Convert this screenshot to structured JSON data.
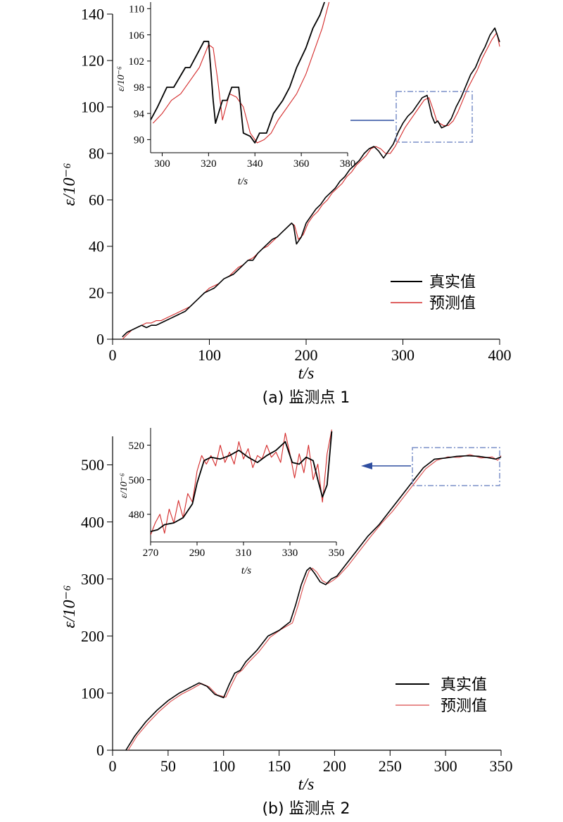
{
  "chart_data": [
    {
      "type": "line",
      "caption": "(a) 监测点 1",
      "xlabel": "t/s",
      "ylabel": "ε/10⁻⁶",
      "xlim": [
        0,
        400
      ],
      "ylim": [
        0,
        140
      ],
      "xticks": [
        0,
        100,
        200,
        300,
        400
      ],
      "yticks": [
        0,
        20,
        40,
        60,
        80,
        100,
        120,
        140
      ],
      "legend_position": "bottom-right",
      "series": [
        {
          "name": "真实值",
          "color": "#000000",
          "x": [
            10,
            15,
            20,
            25,
            30,
            35,
            40,
            45,
            50,
            55,
            60,
            65,
            70,
            75,
            80,
            85,
            90,
            95,
            100,
            105,
            110,
            115,
            120,
            125,
            130,
            135,
            140,
            145,
            150,
            155,
            160,
            165,
            170,
            175,
            180,
            185,
            187,
            190,
            195,
            200,
            205,
            210,
            215,
            220,
            225,
            230,
            235,
            240,
            245,
            250,
            255,
            260,
            265,
            270,
            275,
            280,
            285,
            290,
            295,
            300,
            305,
            310,
            315,
            320,
            325,
            330,
            333,
            336,
            340,
            345,
            350,
            355,
            360,
            365,
            370,
            375,
            380,
            385,
            390,
            395,
            400
          ],
          "values": [
            1,
            3,
            4,
            5,
            6,
            5,
            6,
            6,
            7,
            8,
            9,
            10,
            11,
            12,
            14,
            16,
            18,
            20,
            21,
            22,
            24,
            26,
            27,
            28,
            30,
            32,
            34,
            34,
            37,
            39,
            41,
            43,
            44,
            46,
            48,
            50,
            49,
            41,
            44,
            50,
            53,
            56,
            58,
            61,
            63,
            65,
            68,
            70,
            73,
            75,
            77,
            80,
            82,
            83,
            81,
            78,
            81,
            84,
            89,
            93,
            96,
            98,
            101,
            104,
            105,
            96,
            93,
            94,
            91,
            92,
            95,
            100,
            104,
            109,
            114,
            117,
            122,
            126,
            131,
            134,
            128
          ]
        },
        {
          "name": "预测值",
          "color": "#d42a2a",
          "x": [
            10,
            15,
            20,
            25,
            30,
            35,
            40,
            45,
            50,
            55,
            60,
            65,
            70,
            75,
            80,
            85,
            90,
            95,
            100,
            105,
            110,
            115,
            120,
            125,
            130,
            135,
            140,
            145,
            150,
            155,
            160,
            165,
            170,
            175,
            180,
            185,
            188,
            192,
            197,
            202,
            207,
            212,
            217,
            222,
            227,
            232,
            237,
            242,
            247,
            252,
            257,
            262,
            267,
            272,
            277,
            282,
            287,
            292,
            297,
            302,
            307,
            312,
            317,
            322,
            327,
            332,
            335,
            338,
            342,
            347,
            352,
            357,
            362,
            367,
            372,
            377,
            382,
            387,
            392,
            397,
            400
          ],
          "values": [
            0,
            2,
            4,
            5,
            6,
            7,
            7,
            8,
            8,
            9,
            10,
            11,
            12,
            13,
            14,
            16,
            18,
            20,
            22,
            23,
            24,
            26,
            27,
            29,
            31,
            32,
            34,
            35,
            37,
            39,
            40,
            42,
            44,
            46,
            48,
            50,
            49,
            43,
            45,
            50,
            53,
            55,
            58,
            60,
            63,
            65,
            67,
            70,
            72,
            75,
            77,
            79,
            82,
            83,
            82,
            80,
            80,
            83,
            87,
            91,
            94,
            97,
            100,
            103,
            104,
            98,
            94,
            93,
            92,
            92,
            94,
            98,
            103,
            108,
            112,
            116,
            121,
            125,
            129,
            132,
            126
          ]
        }
      ],
      "inset": {
        "xlabel": "t/s",
        "ylabel": "ε/10⁻⁶",
        "xlim": [
          295,
          380
        ],
        "ylim": [
          88,
          111
        ],
        "xticks": [
          300,
          320,
          340,
          360,
          380
        ],
        "yticks": [
          90,
          94,
          98,
          102,
          106,
          110
        ],
        "zoom_box": {
          "x": [
            296,
            372
          ],
          "y": [
            88,
            111
          ]
        },
        "series": [
          {
            "name": "真实值",
            "color": "#000000",
            "x": [
              295,
              298,
              302,
              305,
              310,
              312,
              315,
              318,
              320,
              322,
              323,
              326,
              328,
              330,
              333,
              335,
              338,
              340,
              342,
              345,
              348,
              352,
              355,
              358,
              362,
              365,
              368,
              370
            ],
            "values": [
              93,
              95,
              98,
              98,
              101,
              101,
              103,
              105,
              105,
              96,
              92.5,
              96,
              96,
              98,
              98,
              91,
              90.5,
              89.5,
              91,
              91,
              94,
              96,
              98,
              101,
              104,
              107,
              109,
              111
            ]
          },
          {
            "name": "预测值",
            "color": "#d42a2a",
            "x": [
              296,
              300,
              304,
              308,
              312,
              316,
              320,
              322,
              324,
              326,
              329,
              332,
              335,
              338,
              341,
              344,
              347,
              350,
              354,
              358,
              362,
              366,
              369,
              372
            ],
            "values": [
              92.5,
              94,
              96,
              97,
              99,
              101,
              104.5,
              104,
              99,
              93,
              97,
              96.5,
              95,
              91,
              89.5,
              90,
              91,
              93,
              95,
              97,
              100,
              104,
              107,
              111
            ]
          }
        ]
      }
    },
    {
      "type": "line",
      "caption": "(b) 监测点 2",
      "xlabel": "t/s",
      "ylabel": "ε/10⁻⁶",
      "xlim": [
        0,
        350
      ],
      "ylim": [
        0,
        550
      ],
      "xticks": [
        0,
        50,
        100,
        150,
        200,
        250,
        300,
        350
      ],
      "yticks": [
        0,
        100,
        200,
        300,
        400,
        500
      ],
      "legend_position": "bottom-right",
      "series": [
        {
          "name": "真实值",
          "color": "#000000",
          "x": [
            12,
            20,
            30,
            40,
            50,
            60,
            70,
            78,
            85,
            92,
            100,
            105,
            110,
            115,
            120,
            130,
            140,
            150,
            160,
            165,
            170,
            175,
            178,
            182,
            187,
            192,
            197,
            202,
            210,
            220,
            230,
            240,
            250,
            260,
            270,
            280,
            290,
            300,
            310,
            320,
            330,
            340,
            345,
            350
          ],
          "values": [
            0,
            25,
            50,
            70,
            87,
            100,
            110,
            118,
            112,
            98,
            92,
            115,
            135,
            140,
            155,
            175,
            200,
            210,
            225,
            255,
            290,
            315,
            320,
            310,
            295,
            290,
            300,
            305,
            325,
            350,
            375,
            395,
            420,
            445,
            470,
            495,
            510,
            512,
            515,
            516,
            515,
            512,
            510,
            514
          ]
        },
        {
          "name": "预测值",
          "color": "#d94a4a",
          "x": [
            14,
            22,
            32,
            42,
            52,
            62,
            72,
            80,
            87,
            94,
            102,
            107,
            112,
            117,
            122,
            132,
            142,
            152,
            162,
            167,
            172,
            177,
            180,
            184,
            189,
            194,
            199,
            204,
            212,
            222,
            232,
            242,
            252,
            262,
            272,
            282,
            292,
            302,
            312,
            322,
            332,
            342,
            347,
            350
          ],
          "values": [
            0,
            25,
            48,
            68,
            85,
            98,
            108,
            117,
            111,
            97,
            93,
            114,
            133,
            141,
            153,
            173,
            198,
            212,
            223,
            253,
            288,
            314,
            319,
            312,
            297,
            292,
            298,
            306,
            323,
            348,
            373,
            397,
            418,
            443,
            468,
            493,
            508,
            514,
            513,
            518,
            512,
            514,
            508,
            516
          ]
        }
      ],
      "inset": {
        "xlabel": "t/s",
        "ylabel": "ε/10⁻⁶",
        "xlim": [
          270,
          350
        ],
        "ylim": [
          464,
          530
        ],
        "xticks": [
          270,
          290,
          310,
          330,
          350
        ],
        "yticks": [
          480,
          500,
          520
        ],
        "zoom_box": {
          "x": [
            270,
            350
          ],
          "y": [
            464,
            530
          ]
        },
        "series": [
          {
            "name": "真实值",
            "color": "#000000",
            "x": [
              270,
              273,
              276,
              280,
              284,
              288,
              290,
              293,
              296,
              300,
              304,
              308,
              312,
              316,
              320,
              324,
              328,
              331,
              334,
              337,
              340,
              342,
              344,
              346,
              348
            ],
            "values": [
              470,
              471,
              474,
              475,
              478,
              486,
              498,
              511,
              513,
              512,
              514,
              517,
              513,
              510,
              514,
              517,
              522,
              510,
              509,
              513,
              511,
              500,
              490,
              497,
              528
            ]
          },
          {
            "name": "预测值",
            "color": "#d42a2a",
            "x": [
              270,
              272,
              274,
              276,
              278,
              280,
              282,
              284,
              286,
              288,
              290,
              292,
              294,
              296,
              298,
              300,
              302,
              304,
              306,
              308,
              310,
              312,
              314,
              316,
              318,
              320,
              322,
              324,
              326,
              328,
              330,
              332,
              334,
              336,
              338,
              340,
              342,
              344,
              346,
              348
            ],
            "values": [
              468,
              475,
              480,
              469,
              483,
              475,
              488,
              478,
              492,
              487,
              505,
              514,
              509,
              514,
              508,
              520,
              510,
              516,
              509,
              522,
              512,
              518,
              507,
              514,
              512,
              520,
              513,
              516,
              510,
              527,
              515,
              501,
              515,
              504,
              520,
              500,
              509,
              487,
              515,
              529
            ]
          }
        ]
      }
    }
  ]
}
